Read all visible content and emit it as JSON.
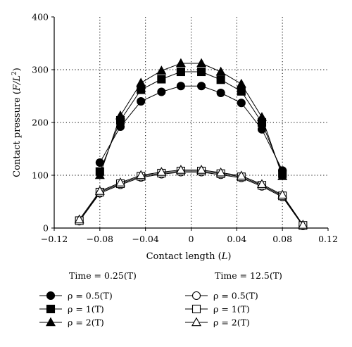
{
  "chart_data": {
    "type": "line",
    "title": "",
    "xlabel": {
      "prefix": "Contact length (",
      "unit": "L",
      "suffix": ")"
    },
    "ylabel": {
      "prefix": "Contact pressure (",
      "unit": "F/L",
      "sup": "2",
      "suffix": ")"
    },
    "xlim": [
      -0.12,
      0.12
    ],
    "ylim": [
      0,
      400
    ],
    "xticks": [
      -0.12,
      -0.08,
      -0.04,
      0,
      0.04,
      0.08,
      0.12
    ],
    "xtick_labels": [
      "−0.12",
      "−0.08",
      "−0.04",
      "0",
      "0.04",
      "0.08",
      "0.12"
    ],
    "yticks": [
      0,
      100,
      200,
      300,
      400
    ],
    "ytick_labels": [
      "0",
      "100",
      "200",
      "300",
      "400"
    ],
    "grid": "dotted",
    "legend": {
      "placement": "below",
      "groups": [
        {
          "heading": "Time = 0.25(T)",
          "marker_fill": "filled"
        },
        {
          "heading": "Time = 12.5(T)",
          "marker_fill": "open"
        }
      ]
    },
    "series": [
      {
        "name": "ρ = 0.5(T)",
        "group": 0,
        "marker": "circle",
        "filled": true,
        "x": [
          -0.08,
          -0.062,
          -0.044,
          -0.026,
          -0.009,
          0.009,
          0.026,
          0.044,
          0.062,
          0.08
        ],
        "y": [
          124,
          192,
          240,
          258,
          269,
          269,
          256,
          237,
          187,
          109
        ]
      },
      {
        "name": "ρ = 1(T)",
        "group": 0,
        "marker": "square",
        "filled": true,
        "x": [
          -0.08,
          -0.062,
          -0.044,
          -0.026,
          -0.009,
          0.009,
          0.026,
          0.044,
          0.062,
          0.08
        ],
        "y": [
          107,
          204,
          262,
          282,
          296,
          296,
          281,
          259,
          200,
          103
        ]
      },
      {
        "name": "ρ = 2(T)",
        "group": 0,
        "marker": "triangle",
        "filled": true,
        "x": [
          -0.08,
          -0.062,
          -0.044,
          -0.026,
          -0.009,
          0.009,
          0.026,
          0.044,
          0.062,
          0.08
        ],
        "y": [
          100,
          213,
          275,
          298,
          312,
          312,
          296,
          273,
          210,
          98
        ]
      },
      {
        "name": "ρ = 0.5(T)",
        "group": 1,
        "marker": "circle",
        "filled": false,
        "x": [
          -0.098,
          -0.08,
          -0.062,
          -0.044,
          -0.026,
          -0.009,
          0.009,
          0.026,
          0.044,
          0.062,
          0.08,
          0.098
        ],
        "y": [
          13,
          66,
          82,
          96,
          102,
          106,
          106,
          101,
          95,
          79,
          59,
          4
        ]
      },
      {
        "name": "ρ = 1(T)",
        "group": 1,
        "marker": "square",
        "filled": false,
        "x": [
          -0.098,
          -0.08,
          -0.062,
          -0.044,
          -0.026,
          -0.009,
          0.009,
          0.026,
          0.044,
          0.062,
          0.08,
          0.098
        ],
        "y": [
          14,
          68,
          84,
          98,
          104,
          108,
          108,
          103,
          97,
          81,
          61,
          5
        ]
      },
      {
        "name": "ρ = 2(T)",
        "group": 1,
        "marker": "triangle",
        "filled": false,
        "x": [
          -0.098,
          -0.08,
          -0.062,
          -0.044,
          -0.026,
          -0.009,
          0.009,
          0.026,
          0.044,
          0.062,
          0.08,
          0.098
        ],
        "y": [
          16,
          70,
          86,
          100,
          106,
          110,
          110,
          105,
          99,
          83,
          63,
          6
        ]
      }
    ]
  }
}
